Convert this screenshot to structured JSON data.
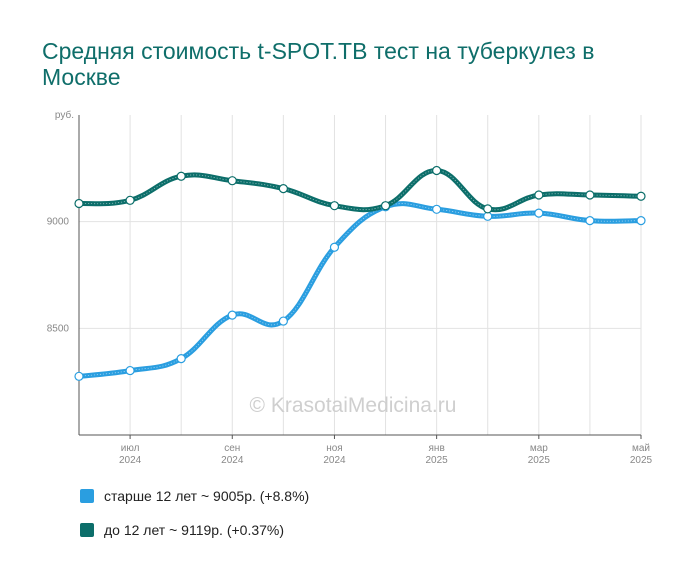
{
  "chart_data": {
    "type": "line",
    "title": "Средняя стоимость t-SPOT.TB тест на туберкулез в Москве",
    "ylabel": "руб.",
    "yticks": [
      9000,
      8500
    ],
    "ylim": [
      8000,
      9500
    ],
    "xticks": [
      {
        "month": "июл",
        "year": "2024"
      },
      {
        "month": "сен",
        "year": "2024"
      },
      {
        "month": "ноя",
        "year": "2024"
      },
      {
        "month": "янв",
        "year": "2025"
      },
      {
        "month": "мар",
        "year": "2025"
      },
      {
        "month": "май",
        "year": "2025"
      }
    ],
    "x": [
      "2024-06",
      "2024-07",
      "2024-08",
      "2024-09",
      "2024-10",
      "2024-11",
      "2024-12",
      "2025-01",
      "2025-02",
      "2025-03",
      "2025-04",
      "2025-05"
    ],
    "series": [
      {
        "key": "older",
        "color": "#2a9ee0",
        "values": [
          8275,
          8302,
          8358,
          8562,
          8534,
          8880,
          9070,
          9058,
          9025,
          9040,
          9005,
          9005
        ]
      },
      {
        "key": "younger",
        "color": "#0c6e6a",
        "values": [
          9085,
          9100,
          9213,
          9192,
          9155,
          9075,
          9075,
          9240,
          9060,
          9125,
          9125,
          9119
        ]
      }
    ],
    "grid": true,
    "watermark": "© KrasotaiMedicina.ru",
    "legend": [
      {
        "label": "старше 12 лет ~ 9005р. (+8.8%)",
        "color": "#2a9ee0"
      },
      {
        "label": "до 12 лет ~ 9119р. (+0.37%)",
        "color": "#0c6e6a"
      }
    ]
  }
}
